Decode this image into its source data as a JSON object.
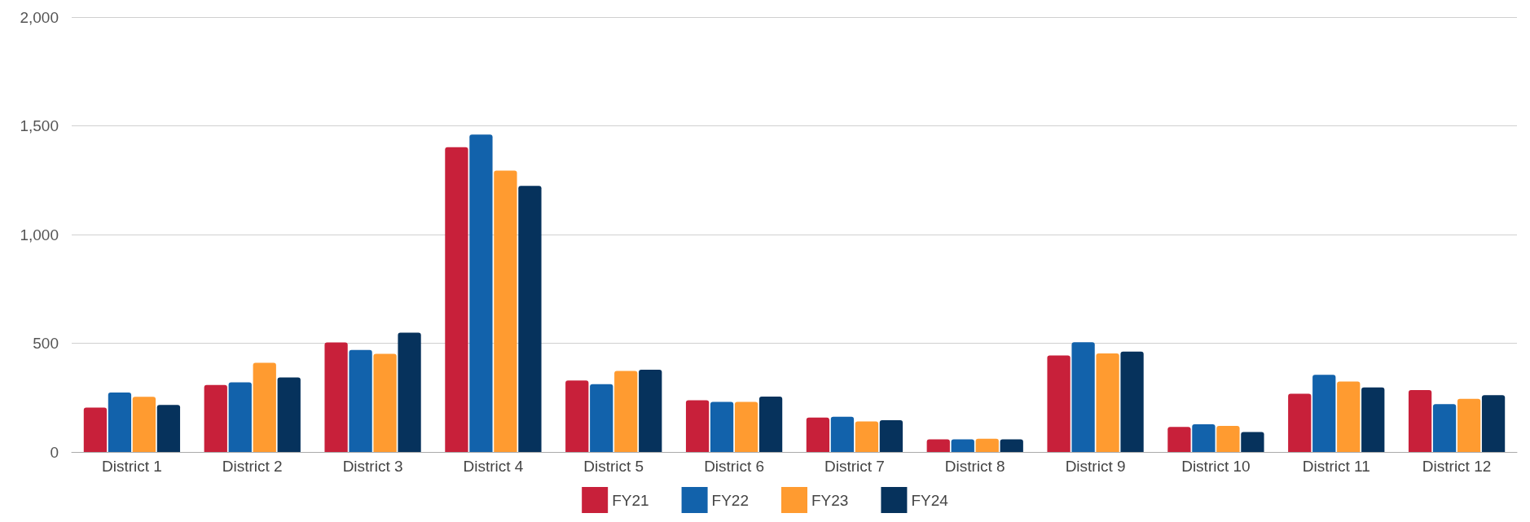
{
  "chart_data": {
    "type": "bar",
    "categories": [
      "District 1",
      "District 2",
      "District 3",
      "District 4",
      "District 5",
      "District 6",
      "District 7",
      "District 8",
      "District 9",
      "District 10",
      "District 11",
      "District 12"
    ],
    "series": [
      {
        "name": "FY21",
        "color": "#c8203a",
        "values": [
          204,
          308,
          504,
          1402,
          329,
          238,
          158,
          58,
          444,
          115,
          268,
          285
        ]
      },
      {
        "name": "FY22",
        "color": "#1262ab",
        "values": [
          273,
          320,
          469,
          1460,
          312,
          230,
          162,
          58,
          505,
          127,
          355,
          220
        ]
      },
      {
        "name": "FY23",
        "color": "#ff9b30",
        "values": [
          254,
          410,
          451,
          1294,
          373,
          230,
          140,
          61,
          453,
          120,
          324,
          244
        ]
      },
      {
        "name": "FY24",
        "color": "#06325c",
        "values": [
          216,
          343,
          549,
          1224,
          378,
          255,
          146,
          58,
          462,
          92,
          297,
          261
        ]
      }
    ],
    "ylim": [
      0,
      2000
    ],
    "yticks": [
      0,
      {
        "value": 500,
        "label": "500"
      },
      {
        "value": 1000,
        "label": "1,000"
      },
      {
        "value": 1500,
        "label": "1,500"
      },
      {
        "value": 2000,
        "label": "2,000"
      }
    ],
    "grid": "y",
    "legend": "bottom"
  }
}
